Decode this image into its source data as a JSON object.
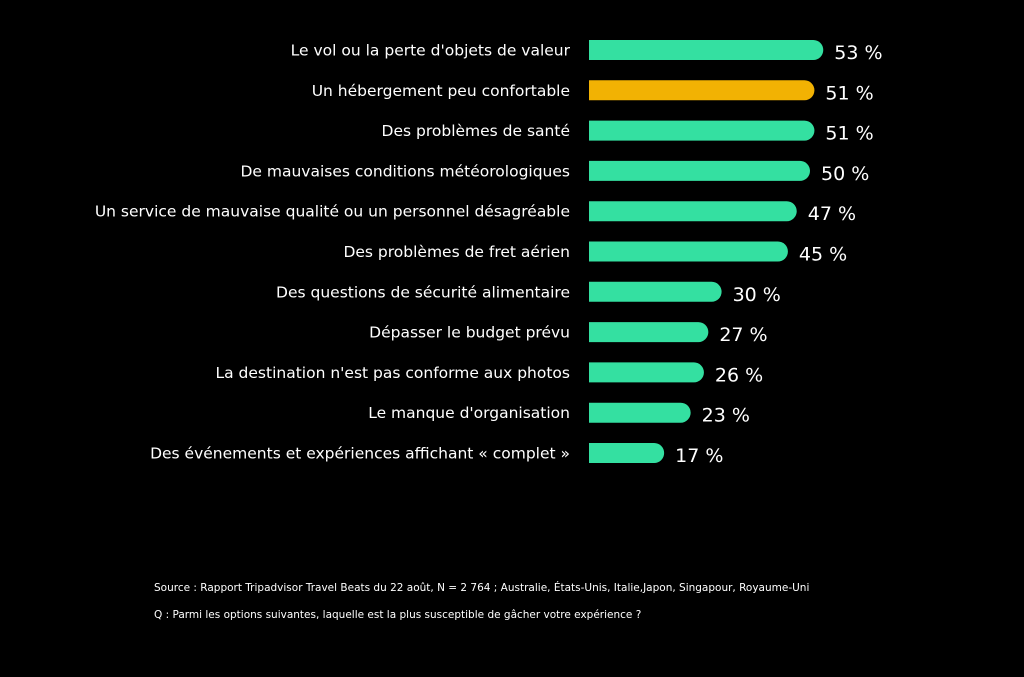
{
  "chart_data": {
    "type": "bar",
    "orientation": "horizontal",
    "categories": [
      "Le vol ou la perte d'objets de valeur",
      "Un hébergement peu confortable",
      "Des problèmes de santé",
      "De mauvaises conditions météorologiques",
      "Un service de mauvaise qualité ou un personnel désagréable",
      "Des problèmes de fret aérien",
      "Des questions de sécurité alimentaire",
      "Dépasser le budget prévu",
      "La destination n'est pas conforme aux photos",
      "Le manque d'organisation",
      "Des événements et expériences affichant « complet »"
    ],
    "values": [
      53,
      51,
      51,
      50,
      47,
      45,
      30,
      27,
      26,
      23,
      17
    ],
    "value_labels": [
      "53 %",
      "51 %",
      "51 %",
      "50 %",
      "47 %",
      "45 %",
      "30 %",
      "27 %",
      "26 %",
      "23 %",
      "17 %"
    ],
    "highlight_index": 1,
    "bar_color": "#34e0a1",
    "highlight_color": "#f2b203",
    "grid": false,
    "legend": "none"
  },
  "footnotes": {
    "source": "Source : Rapport Tripadvisor Travel Beats du 22 août, N = 2 764 ; Australie, États-Unis, Italie,Japon, Singapour, Royaume-Uni",
    "question": "Q : Parmi les options suivantes, laquelle est la plus susceptible de gâcher votre expérience ?"
  },
  "colors": {
    "background": "#000000",
    "text": "#ffffff"
  }
}
